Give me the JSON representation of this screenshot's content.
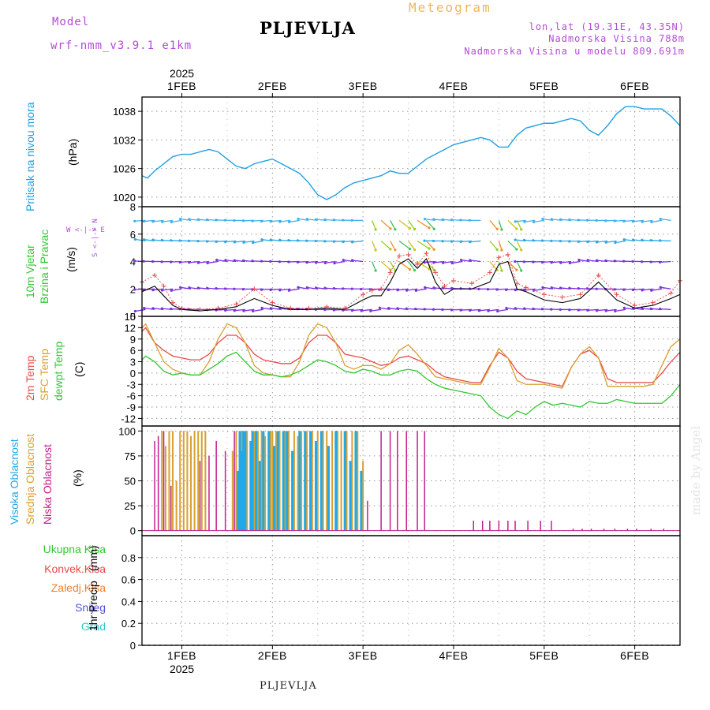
{
  "header": {
    "model_label": "Model",
    "model_name": "wrf-nmm_v3.9.1 e1km",
    "city_title": "PLJEVLJA",
    "meteogram_label": "Meteogram",
    "location": "lon,lat (19.31E, 43.35N)",
    "altitude": "Nadmorska Visina 788m",
    "model_altitude": "Nadmorska Visina u modelu 809.691m"
  },
  "footer": {
    "city": "PLJEVLJA",
    "credit": "made by Angel"
  },
  "axis_time": {
    "year": "2025",
    "days": [
      "1FEB",
      "2FEB",
      "3FEB",
      "4FEB",
      "5FEB",
      "6FEB"
    ],
    "day_pos": [
      1,
      2,
      3,
      4,
      5,
      6
    ],
    "range": [
      0.56,
      6.5
    ]
  },
  "colors": {
    "pressure": "#1ea0e6",
    "temp2m": "#e84848",
    "sfc": "#d8a030",
    "dew": "#30c830",
    "high_cloud": "#20a8e8",
    "mid_cloud": "#d8a030",
    "low_cloud": "#c0208c",
    "wind_speed": "#000000",
    "gust": "#e84848"
  },
  "chart_data": [
    {
      "type": "line",
      "panel": "pressure",
      "ylabel_main": "Pritisak na nivou mora",
      "ylabel_unit": "(hPa)",
      "ylim": [
        1018,
        1041
      ],
      "yticks": [
        "1020",
        "1026",
        "1032",
        "1038"
      ],
      "ytick_values": [
        1020,
        1026,
        1032,
        1038
      ],
      "series": [
        {
          "x": [
            0.56,
            0.62,
            0.7,
            0.8,
            0.9,
            1.0,
            1.1,
            1.2,
            1.3,
            1.4,
            1.5,
            1.6,
            1.7,
            1.8,
            1.9,
            2.0,
            2.1,
            2.2,
            2.3,
            2.4,
            2.5,
            2.6,
            2.7,
            2.8,
            2.9,
            3.0,
            3.1,
            3.2,
            3.3,
            3.4,
            3.5,
            3.6,
            3.7,
            3.8,
            3.9,
            4.0,
            4.1,
            4.2,
            4.3,
            4.4,
            4.5,
            4.6,
            4.7,
            4.8,
            4.9,
            5.0,
            5.1,
            5.2,
            5.3,
            5.4,
            5.5,
            5.6,
            5.7,
            5.8,
            5.9,
            6.0,
            6.1,
            6.2,
            6.3,
            6.4,
            6.5
          ],
          "values": [
            1024.5,
            1024,
            1025.5,
            1027,
            1028.5,
            1029,
            1029,
            1029.5,
            1030,
            1029.5,
            1028,
            1026.5,
            1026,
            1027,
            1027.5,
            1028,
            1027,
            1026,
            1025,
            1023,
            1020.5,
            1019.5,
            1020.5,
            1022,
            1023,
            1023.5,
            1024,
            1024.5,
            1025.5,
            1025,
            1025,
            1026.5,
            1028,
            1029,
            1030,
            1031,
            1031.5,
            1032,
            1032.5,
            1032,
            1030.5,
            1030.5,
            1033,
            1034.5,
            1035,
            1035.5,
            1035.5,
            1036,
            1036.5,
            1036,
            1034,
            1033,
            1035,
            1037.5,
            1039,
            1039,
            1038.5,
            1038.5,
            1038.5,
            1037,
            1035
          ]
        }
      ]
    },
    {
      "type": "line",
      "panel": "wind",
      "ylabel_main": "10m Vjetar",
      "ylabel_sub": "Brzina i Pravac",
      "ylabel_unit": "(m/s)",
      "compass_h": "W <-|-> E",
      "compass_v": "S <-|-> N",
      "ylim": [
        0,
        8
      ],
      "yticks": [
        "0",
        "2",
        "4",
        "6",
        "8"
      ],
      "ytick_values": [
        0,
        2,
        4,
        6,
        8
      ],
      "series": [
        {
          "name": "speed",
          "x": [
            0.56,
            0.7,
            0.8,
            0.9,
            1.0,
            1.2,
            1.4,
            1.6,
            1.8,
            2.0,
            2.2,
            2.4,
            2.6,
            2.8,
            3.0,
            3.1,
            3.2,
            3.3,
            3.4,
            3.5,
            3.6,
            3.7,
            3.8,
            3.9,
            4.0,
            4.2,
            4.4,
            4.5,
            4.6,
            4.7,
            4.8,
            5.0,
            5.2,
            5.4,
            5.6,
            5.8,
            6.0,
            6.2,
            6.4,
            6.5
          ],
          "values": [
            1.8,
            2.2,
            1.5,
            0.8,
            0.5,
            0.4,
            0.5,
            0.7,
            1.3,
            0.8,
            0.5,
            0.5,
            0.6,
            0.5,
            1.2,
            1.5,
            1.5,
            2.5,
            3.8,
            4.2,
            3.5,
            4.2,
            2.5,
            1.6,
            2.0,
            2.0,
            2.5,
            3.8,
            4.0,
            2.0,
            1.8,
            1.2,
            1.0,
            1.3,
            2.5,
            1.2,
            0.6,
            0.8,
            1.3,
            1.6
          ]
        },
        {
          "name": "gust",
          "x": [
            0.56,
            0.7,
            0.8,
            0.9,
            1.0,
            1.2,
            1.4,
            1.6,
            1.8,
            2.0,
            2.2,
            2.4,
            2.6,
            2.8,
            3.0,
            3.1,
            3.2,
            3.3,
            3.4,
            3.5,
            3.6,
            3.7,
            3.8,
            3.9,
            4.0,
            4.2,
            4.4,
            4.5,
            4.6,
            4.7,
            4.8,
            5.0,
            5.2,
            5.4,
            5.6,
            5.8,
            6.0,
            6.2,
            6.4,
            6.5
          ],
          "values": [
            2.5,
            3.0,
            2.2,
            1.0,
            0.6,
            0.5,
            0.6,
            0.9,
            2.0,
            1.0,
            0.6,
            0.6,
            0.7,
            0.6,
            1.6,
            1.9,
            2.0,
            3.2,
            4.4,
            4.5,
            3.8,
            4.6,
            3.2,
            2.2,
            2.6,
            2.4,
            3.2,
            4.3,
            4.5,
            2.4,
            2.1,
            1.6,
            1.4,
            1.6,
            3.0,
            1.6,
            0.8,
            1.0,
            1.7,
            2.6
          ]
        }
      ],
      "barb_x": [
        0.6,
        0.7,
        0.8,
        0.9,
        1.0,
        1.1,
        1.2,
        1.3,
        1.4,
        1.5,
        1.6,
        1.7,
        1.8,
        1.9,
        2.0,
        2.1,
        2.2,
        2.3,
        2.4,
        2.5,
        2.6,
        2.7,
        2.8,
        2.9,
        3.0,
        3.1,
        3.2,
        3.3,
        3.4,
        3.5,
        3.6,
        3.7,
        3.8,
        3.9,
        4.0,
        4.1,
        4.2,
        4.3,
        4.4,
        4.5,
        4.6,
        4.7,
        4.8,
        4.9,
        5.0,
        5.1,
        5.2,
        5.3,
        5.4,
        5.5,
        5.6,
        5.7,
        5.8,
        5.9,
        6.0,
        6.1,
        6.2,
        6.3,
        6.4
      ],
      "barb_levels": [
        0.5,
        2,
        4,
        5.5,
        7
      ]
    },
    {
      "type": "line",
      "panel": "temperature",
      "ylabel_lines": [
        "2m Temp",
        "SFC Temp",
        "dewpt Temp"
      ],
      "ylabel_unit": "(C)",
      "ylim": [
        -14,
        15
      ],
      "yticks": [
        "15",
        "12",
        "9",
        "6",
        "3",
        "0",
        "-3",
        "-6",
        "-9",
        "-12"
      ],
      "ytick_values": [
        15,
        12,
        9,
        6,
        3,
        0,
        -3,
        -6,
        -9,
        -12
      ],
      "x": [
        0.56,
        0.6,
        0.7,
        0.8,
        0.9,
        1.0,
        1.1,
        1.2,
        1.3,
        1.4,
        1.5,
        1.6,
        1.7,
        1.8,
        1.9,
        2.0,
        2.1,
        2.2,
        2.3,
        2.4,
        2.5,
        2.6,
        2.7,
        2.8,
        2.9,
        3.0,
        3.1,
        3.2,
        3.3,
        3.4,
        3.5,
        3.6,
        3.7,
        3.8,
        3.9,
        4.0,
        4.1,
        4.2,
        4.3,
        4.4,
        4.5,
        4.6,
        4.7,
        4.8,
        4.9,
        5.0,
        5.1,
        5.2,
        5.3,
        5.4,
        5.5,
        5.6,
        5.7,
        5.8,
        5.9,
        6.0,
        6.1,
        6.2,
        6.3,
        6.4,
        6.5
      ],
      "series": [
        {
          "name": "2m Temp",
          "values": [
            11,
            12,
            8,
            6,
            4.5,
            4,
            3.5,
            3.5,
            5,
            8,
            10,
            10,
            8,
            5,
            3.5,
            3,
            2.5,
            2.5,
            4,
            8,
            10,
            10,
            8,
            5,
            4.5,
            4,
            3,
            2,
            2.5,
            4,
            4.5,
            3.5,
            2.5,
            0.5,
            -1,
            -1.5,
            -2,
            -2.5,
            -2.5,
            2,
            5.5,
            4,
            0.5,
            -1.5,
            -2,
            -2.5,
            -3,
            -3.5,
            1.5,
            5,
            6,
            4,
            -1.5,
            -2.5,
            -2.5,
            -2.5,
            -2.5,
            -2.5,
            0,
            3,
            5.5
          ]
        },
        {
          "name": "SFC Temp",
          "values": [
            12,
            13,
            8,
            3,
            1,
            0,
            -0.5,
            -0.5,
            3,
            9,
            13,
            12,
            8,
            2,
            0,
            -0.5,
            -1,
            -1,
            3,
            10,
            13,
            12,
            8,
            2,
            1,
            2,
            2,
            1,
            2.5,
            6,
            7.5,
            5,
            2,
            -1,
            -1.5,
            -2,
            -2.5,
            -3,
            -3,
            1.5,
            6.5,
            4,
            -2,
            -3,
            -3,
            -3,
            -3.5,
            -4,
            1.5,
            5,
            7,
            4,
            -3.5,
            -3.5,
            -3.5,
            -3.5,
            -3.5,
            -3,
            2,
            7,
            9
          ]
        },
        {
          "name": "dewpt Temp",
          "values": [
            3.5,
            4.5,
            3,
            0.5,
            -0.5,
            0,
            -0.5,
            -0.5,
            1,
            2.5,
            4.5,
            5.5,
            3,
            0.5,
            -0.5,
            -0.5,
            -1,
            -0.5,
            0.5,
            2,
            3.5,
            3,
            2,
            0.5,
            0,
            1,
            0.5,
            -0.5,
            -0.5,
            0.5,
            1,
            0.5,
            -1.5,
            -3,
            -4,
            -4.5,
            -5,
            -5.5,
            -6,
            -9,
            -11,
            -12,
            -10,
            -11,
            -9,
            -7.5,
            -8.5,
            -8,
            -8.5,
            -9,
            -7.5,
            -8,
            -8,
            -7,
            -7.5,
            -8,
            -8,
            -8,
            -8,
            -6,
            -3
          ]
        }
      ]
    },
    {
      "type": "bar",
      "panel": "cloud",
      "ylabel_lines": [
        "Visoka Oblacnost",
        "Srednja Oblacnost",
        "Niska Oblacnost"
      ],
      "ylabel_unit": "(%)",
      "ylim": [
        -5,
        105
      ],
      "yticks": [
        "0",
        "25",
        "50",
        "75",
        "100"
      ],
      "ytick_values": [
        0,
        25,
        50,
        75,
        100
      ],
      "series": [
        {
          "name": "Visoka Oblacnost",
          "x": [
            1.62,
            1.64,
            1.66,
            1.68,
            1.7,
            1.76,
            1.78,
            1.82,
            1.86,
            1.9,
            1.96,
            2.02,
            2.06,
            2.12,
            2.16,
            2.22,
            2.3,
            2.36,
            2.42,
            2.48,
            2.54,
            2.62,
            2.7,
            2.8,
            2.86,
            2.92,
            2.98
          ],
          "values": [
            60,
            100,
            80,
            100,
            100,
            90,
            100,
            100,
            70,
            100,
            100,
            85,
            100,
            100,
            100,
            80,
            100,
            100,
            100,
            90,
            100,
            85,
            100,
            100,
            70,
            100,
            60
          ]
        },
        {
          "name": "Srednja Oblacnost",
          "x": [
            0.78,
            0.82,
            0.86,
            0.9,
            0.94,
            0.98,
            1.02,
            1.06,
            1.1,
            1.14,
            1.18,
            1.22,
            1.26,
            1.56,
            1.6,
            1.66,
            1.72,
            1.8,
            1.84,
            1.88,
            1.92,
            1.98,
            2.0,
            2.04,
            2.08,
            2.14,
            2.18,
            2.24,
            2.28,
            2.32,
            2.38,
            2.44,
            2.5,
            2.56,
            2.6,
            2.66,
            2.72,
            2.76,
            2.82,
            2.88,
            2.94,
            3.0
          ],
          "values": [
            100,
            85,
            100,
            100,
            50,
            100,
            100,
            100,
            95,
            100,
            100,
            100,
            100,
            80,
            100,
            100,
            100,
            100,
            100,
            100,
            95,
            100,
            100,
            100,
            100,
            100,
            100,
            100,
            95,
            100,
            100,
            100,
            100,
            100,
            100,
            100,
            100,
            100,
            100,
            100,
            100,
            70
          ]
        },
        {
          "name": "Niska Oblacnost",
          "x": [
            0.7,
            0.74,
            0.8,
            0.88,
            1.2,
            1.3,
            1.38,
            1.48,
            1.58,
            3.05,
            3.2,
            3.3,
            3.38,
            3.48,
            3.6,
            3.68,
            4.22,
            4.32,
            4.4,
            4.5,
            4.6,
            4.68,
            4.82,
            4.96,
            5.08,
            5.32,
            5.42,
            5.52,
            5.66,
            5.78,
            5.92,
            6.02,
            6.18,
            6.32
          ],
          "values": [
            90,
            95,
            100,
            45,
            70,
            75,
            90,
            80,
            100,
            30,
            100,
            100,
            100,
            100,
            100,
            100,
            10,
            10,
            10,
            10,
            10,
            10,
            10,
            10,
            10,
            2,
            2,
            2,
            2,
            2,
            2,
            2,
            2,
            2
          ]
        }
      ]
    },
    {
      "type": "bar",
      "panel": "precip",
      "ylabel_main": "1hr Precip",
      "ylabel_unit": "(mm)",
      "legend": [
        "Ukupna Kisa",
        "Konvek.Kisa",
        "Zaledj.Kisa",
        "Snijeg",
        "Grad"
      ],
      "legend_colors": [
        "#30c830",
        "#e84848",
        "#f08030",
        "#5050e0",
        "#30c8c8"
      ],
      "ylim": [
        0,
        1
      ],
      "yticks": [
        "0",
        "0.2",
        "0.4",
        "0.6",
        "0.8"
      ],
      "ytick_values": [
        0,
        0.2,
        0.4,
        0.6,
        0.8
      ],
      "series": []
    }
  ]
}
